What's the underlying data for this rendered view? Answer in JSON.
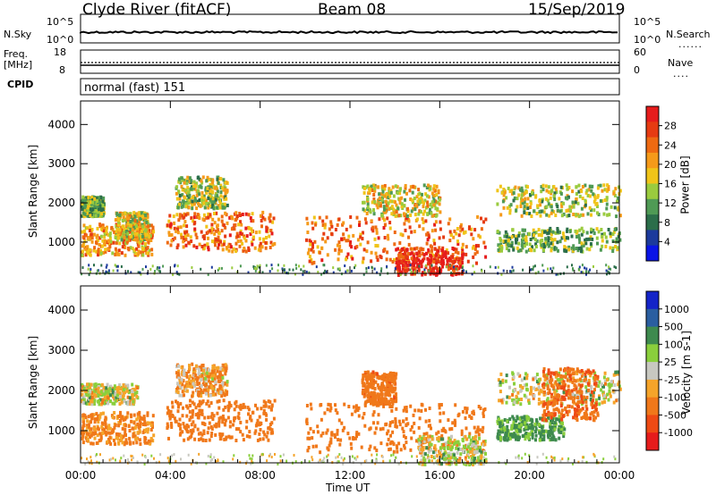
{
  "header": {
    "site": "Clyde River (fitACF)",
    "beam": "Beam 08",
    "date": "15/Sep/2019"
  },
  "top_strip": {
    "nsky_label": "N.Sky",
    "nsky_ticks": [
      "10^5",
      "10^0"
    ],
    "nsearch_label": "N.Search",
    "nsearch_ticks": [
      "10^5",
      "10^0"
    ],
    "freq_label": "Freq.",
    "freq_unit": "[MHz]",
    "freq_ticks": [
      "18",
      "8"
    ],
    "nave_label": "Nave",
    "nave_ticks": [
      "60",
      "0"
    ],
    "cpid_label": "CPID",
    "cpid_value": "normal (fast) 151"
  },
  "colors": {
    "power": [
      "#0a14e6",
      "#1c3a9c",
      "#2b6e4a",
      "#4f9a55",
      "#9acb3e",
      "#f0c419",
      "#f59a1a",
      "#ee6a12",
      "#e63b12",
      "#e61c1c"
    ],
    "velocity": [
      "#e61c1c",
      "#ee4a14",
      "#f0781a",
      "#f5a42a",
      "#c8c8c0",
      "#8acf3c",
      "#3e8a4e",
      "#2a5ea0",
      "#1424c8"
    ]
  },
  "chart_data": [
    {
      "type": "heatmap",
      "name": "power-panel",
      "xlabel": "",
      "ylabel": "Slant Range [km]",
      "ylim": [
        200,
        4600
      ],
      "yticks": [
        "1000",
        "2000",
        "3000",
        "4000"
      ],
      "xticks": [
        "00:00",
        "04:00",
        "08:00",
        "12:00",
        "16:00",
        "20:00",
        "00:00"
      ],
      "xlim_hours": [
        0,
        24
      ],
      "colorbar": {
        "label": "Power [dB]",
        "ticks": [
          "28",
          "24",
          "20",
          "16",
          "12",
          "8",
          "4"
        ],
        "range": [
          0,
          30
        ]
      },
      "echo_regions": [
        {
          "t0": 0.0,
          "t1": 3.2,
          "r0": 700,
          "r1": 1500,
          "level": 20
        },
        {
          "t0": 0.0,
          "t1": 1.0,
          "r0": 1700,
          "r1": 2200,
          "level": 12
        },
        {
          "t0": 1.5,
          "t1": 3.0,
          "r0": 1100,
          "r1": 1800,
          "level": 16
        },
        {
          "t0": 3.8,
          "t1": 8.6,
          "r0": 800,
          "r1": 1800,
          "level": 22
        },
        {
          "t0": 4.2,
          "t1": 6.5,
          "r0": 1900,
          "r1": 2700,
          "level": 14
        },
        {
          "t0": 10.0,
          "t1": 18.0,
          "r0": 500,
          "r1": 1700,
          "level": 22
        },
        {
          "t0": 14.0,
          "t1": 17.0,
          "r0": 200,
          "r1": 900,
          "level": 28
        },
        {
          "t0": 12.5,
          "t1": 16.0,
          "r0": 1700,
          "r1": 2500,
          "level": 16
        },
        {
          "t0": 18.5,
          "t1": 24.0,
          "r0": 800,
          "r1": 1400,
          "level": 12
        },
        {
          "t0": 18.5,
          "t1": 24.0,
          "r0": 1700,
          "r1": 2500,
          "level": 14
        }
      ]
    },
    {
      "type": "heatmap",
      "name": "velocity-panel",
      "xlabel": "Time UT",
      "ylabel": "Slant Range [km]",
      "ylim": [
        200,
        4600
      ],
      "yticks": [
        "1000",
        "2000",
        "3000",
        "4000"
      ],
      "xticks": [
        "00:00",
        "04:00",
        "08:00",
        "12:00",
        "16:00",
        "20:00",
        "00:00"
      ],
      "xlim_hours": [
        0,
        24
      ],
      "colorbar": {
        "label": "Velocity [m s-1]",
        "ticks": [
          "1000",
          "500",
          "100",
          "25",
          "-25",
          "-100",
          "-500",
          "-1000"
        ],
        "range": [
          -1000,
          1000
        ]
      },
      "echo_regions": [
        {
          "t0": 0.0,
          "t1": 3.2,
          "r0": 700,
          "r1": 1500,
          "level": -150
        },
        {
          "t0": 0.0,
          "t1": 2.5,
          "r0": 1700,
          "r1": 2200,
          "level": 0
        },
        {
          "t0": 3.8,
          "t1": 8.6,
          "r0": 800,
          "r1": 1800,
          "level": -300
        },
        {
          "t0": 4.2,
          "t1": 6.5,
          "r0": 1900,
          "r1": 2700,
          "level": -80
        },
        {
          "t0": 10.0,
          "t1": 18.0,
          "r0": 500,
          "r1": 1700,
          "level": -350
        },
        {
          "t0": 15.0,
          "t1": 18.0,
          "r0": 200,
          "r1": 900,
          "level": 0
        },
        {
          "t0": 12.5,
          "t1": 14.0,
          "r0": 1700,
          "r1": 2500,
          "level": -400
        },
        {
          "t0": 18.5,
          "t1": 21.5,
          "r0": 800,
          "r1": 1400,
          "level": 150
        },
        {
          "t0": 18.5,
          "t1": 24.0,
          "r0": 1700,
          "r1": 2500,
          "level": 0
        },
        {
          "t0": 20.5,
          "t1": 23.0,
          "r0": 1300,
          "r1": 2600,
          "level": -450
        }
      ]
    }
  ]
}
